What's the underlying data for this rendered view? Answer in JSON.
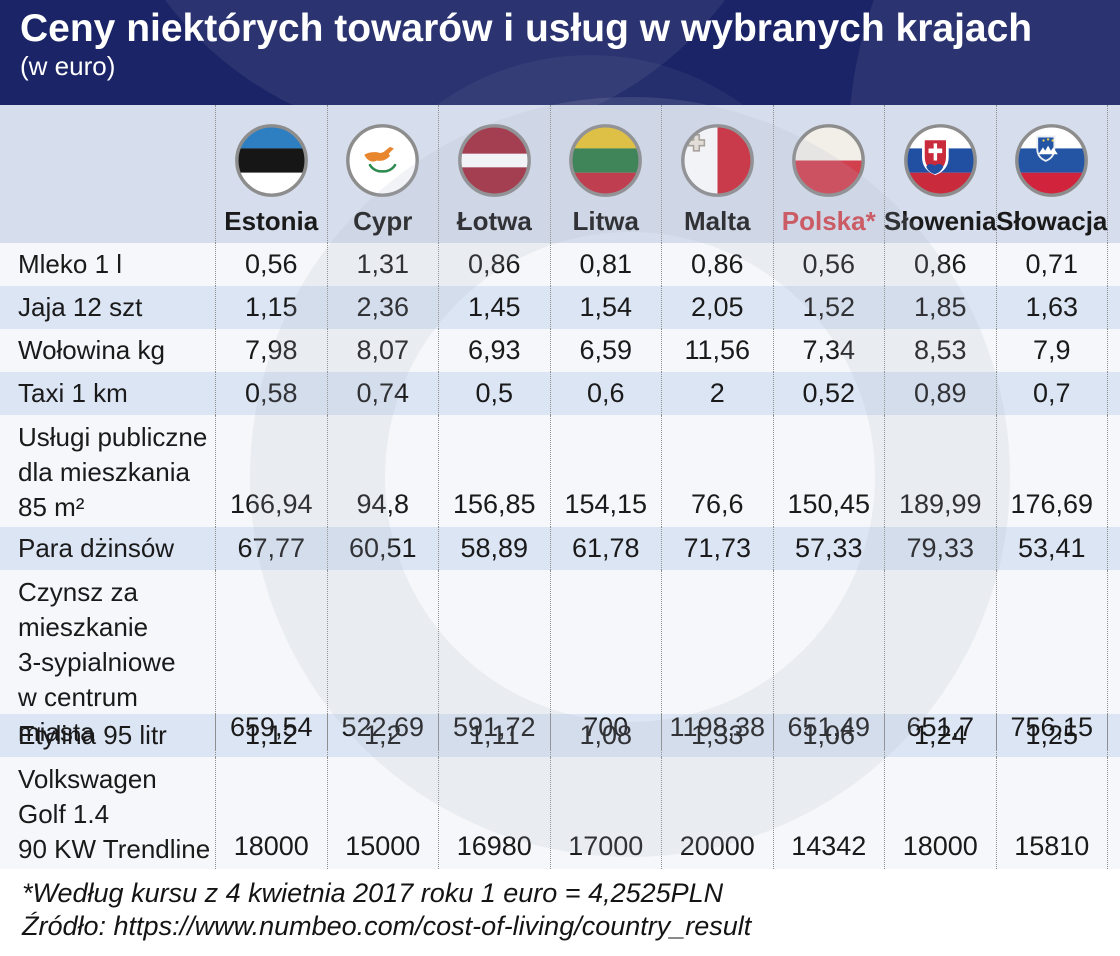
{
  "header": {
    "title": "Ceny niektórych towarów i usług w wybranych krajach",
    "subtitle": "(w euro)"
  },
  "table": {
    "countries": [
      {
        "name": "Estonia",
        "flag": "estonia",
        "highlight": false
      },
      {
        "name": "Cypr",
        "flag": "cypr",
        "highlight": false
      },
      {
        "name": "Łotwa",
        "flag": "lotwa",
        "highlight": false
      },
      {
        "name": "Litwa",
        "flag": "litwa",
        "highlight": false
      },
      {
        "name": "Malta",
        "flag": "malta",
        "highlight": false
      },
      {
        "name": "Polska*",
        "flag": "polska",
        "highlight": true
      },
      {
        "name": "Słowenia",
        "flag": "slowenia",
        "highlight": false
      },
      {
        "name": "Słowacja",
        "flag": "slowacja",
        "highlight": false
      }
    ],
    "rows": [
      {
        "label": [
          "Mleko 1 l"
        ],
        "values": [
          "0,56",
          "1,31",
          "0,86",
          "0,81",
          "0,86",
          "0,56",
          "0,86",
          "0,71"
        ]
      },
      {
        "label": [
          "Jaja 12 szt"
        ],
        "values": [
          "1,15",
          "2,36",
          "1,45",
          "1,54",
          "2,05",
          "1,52",
          "1,85",
          "1,63"
        ]
      },
      {
        "label": [
          "Wołowina kg"
        ],
        "values": [
          "7,98",
          "8,07",
          "6,93",
          "6,59",
          "11,56",
          "7,34",
          "8,53",
          "7,9"
        ]
      },
      {
        "label": [
          "Taxi 1 km"
        ],
        "values": [
          "0,58",
          "0,74",
          "0,5",
          "0,6",
          "2",
          "0,52",
          "0,89",
          "0,7"
        ]
      },
      {
        "label": [
          "Usługi publiczne",
          "dla mieszkania",
          "85 m²"
        ],
        "values": [
          "166,94",
          "94,8",
          "156,85",
          "154,15",
          "76,6",
          "150,45",
          "189,99",
          "176,69"
        ]
      },
      {
        "label": [
          "Para dżinsów"
        ],
        "values": [
          "67,77",
          "60,51",
          "58,89",
          "61,78",
          "71,73",
          "57,33",
          "79,33",
          "53,41"
        ]
      },
      {
        "label": [
          "Czynsz za",
          "mieszkanie",
          "3-sypialniowe",
          "w centrum miasta"
        ],
        "values": [
          "659,54",
          "522,69",
          "591,72",
          "700",
          "1198,38",
          "651,49",
          "651,7",
          "756,15"
        ]
      },
      {
        "label": [
          "Etylina 95 litr"
        ],
        "values": [
          "1,12",
          "1,2",
          "1,11",
          "1,08",
          "1,33",
          "1,06",
          "1,24",
          "1,25"
        ]
      },
      {
        "label": [
          "Volkswagen",
          "Golf 1.4",
          "90 KW Trendline"
        ],
        "values": [
          "18000",
          "15000",
          "16980",
          "17000",
          "20000",
          "14342",
          "18000",
          "15810"
        ]
      }
    ]
  },
  "footer": {
    "note": "*Według kursu z 4 kwietnia 2017 roku 1 euro = 4,2525PLN",
    "source": "Źródło: https://www.numbeo.com/cost-of-living/country_result"
  },
  "colors": {
    "header_navy": "#1b2466",
    "highlight_red": "#d14b52",
    "band_blue": "#d6ddec",
    "row_blue": "#dce5f4",
    "row_white": "#f5f7fa",
    "dash_gray": "#8f8f8f",
    "text_dark": "#1a1a1a",
    "flag_ring": "#8d8d8d"
  },
  "chart_data": {
    "type": "table",
    "title": "Ceny niektórych towarów i usług w wybranych krajach (w euro)",
    "columns": [
      "Estonia",
      "Cypr",
      "Łotwa",
      "Litwa",
      "Malta",
      "Polska",
      "Słowenia",
      "Słowacja"
    ],
    "rows": [
      {
        "item": "Mleko 1 l",
        "values": [
          0.56,
          1.31,
          0.86,
          0.81,
          0.86,
          0.56,
          0.86,
          0.71
        ]
      },
      {
        "item": "Jaja 12 szt",
        "values": [
          1.15,
          2.36,
          1.45,
          1.54,
          2.05,
          1.52,
          1.85,
          1.63
        ]
      },
      {
        "item": "Wołowina kg",
        "values": [
          7.98,
          8.07,
          6.93,
          6.59,
          11.56,
          7.34,
          8.53,
          7.9
        ]
      },
      {
        "item": "Taxi 1 km",
        "values": [
          0.58,
          0.74,
          0.5,
          0.6,
          2,
          0.52,
          0.89,
          0.7
        ]
      },
      {
        "item": "Usługi publiczne dla mieszkania 85 m²",
        "values": [
          166.94,
          94.8,
          156.85,
          154.15,
          76.6,
          150.45,
          189.99,
          176.69
        ]
      },
      {
        "item": "Para dżinsów",
        "values": [
          67.77,
          60.51,
          58.89,
          61.78,
          71.73,
          57.33,
          79.33,
          53.41
        ]
      },
      {
        "item": "Czynsz za mieszkanie 3-sypialniowe w centrum miasta",
        "values": [
          659.54,
          522.69,
          591.72,
          700,
          1198.38,
          651.49,
          651.7,
          756.15
        ]
      },
      {
        "item": "Etylina 95 litr",
        "values": [
          1.12,
          1.2,
          1.11,
          1.08,
          1.33,
          1.06,
          1.24,
          1.25
        ]
      },
      {
        "item": "Volkswagen Golf 1.4 90 KW Trendline",
        "values": [
          18000,
          15000,
          16980,
          17000,
          20000,
          14342,
          18000,
          15810
        ]
      }
    ],
    "footnote": "*Według kursu z 4 kwietnia 2017 roku 1 euro = 4,2525PLN",
    "source": "https://www.numbeo.com/cost-of-living/country_result"
  }
}
